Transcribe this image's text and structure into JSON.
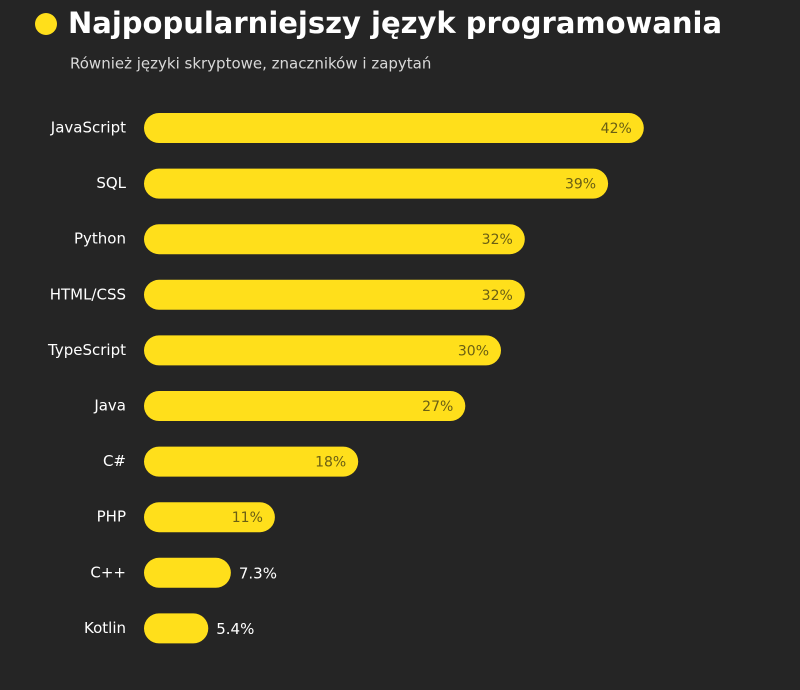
{
  "chart_data": {
    "type": "bar",
    "title": "Najpopularniejszy język programowania",
    "subtitle": "Również języki skryptowe, znaczników i zapytań",
    "categories": [
      "JavaScript",
      "SQL",
      "Python",
      "HTML/CSS",
      "TypeScript",
      "Java",
      "C#",
      "PHP",
      "C++",
      "Kotlin"
    ],
    "values": [
      42,
      39,
      32,
      32,
      30,
      27,
      18,
      11,
      7.3,
      5.4
    ],
    "value_labels": [
      "42%",
      "39%",
      "32%",
      "32%",
      "30%",
      "27%",
      "18%",
      "11%",
      "7.3%",
      "5.4%"
    ],
    "color": "#ffdf1b"
  }
}
